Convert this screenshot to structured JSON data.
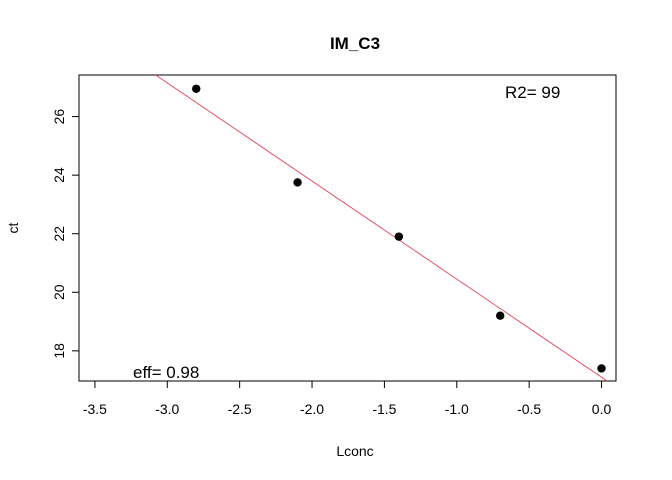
{
  "chart_data": {
    "type": "scatter",
    "title": "IM_C3",
    "xlabel": "Lconc",
    "ylabel": "ct",
    "xlim": [
      -3.61,
      0.1
    ],
    "ylim": [
      16.97,
      27.42
    ],
    "x_ticks": [
      -3.5,
      -3.0,
      -2.5,
      -2.0,
      -1.5,
      -1.0,
      -0.5,
      0.0
    ],
    "x_tick_labels": [
      "-3.5",
      "-3.0",
      "-2.5",
      "-2.0",
      "-1.5",
      "-1.0",
      "-0.5",
      "0.0"
    ],
    "y_ticks": [
      18,
      20,
      22,
      24,
      26
    ],
    "y_tick_labels": [
      "18",
      "20",
      "22",
      "24",
      "26"
    ],
    "grid": false,
    "points": [
      {
        "x": -2.8,
        "y": 26.95
      },
      {
        "x": -2.1,
        "y": 23.75
      },
      {
        "x": -1.4,
        "y": 21.9
      },
      {
        "x": -0.7,
        "y": 19.2
      },
      {
        "x": 0.0,
        "y": 17.4
      }
    ],
    "regression_line": {
      "slope": -3.35,
      "intercept": 17.1,
      "color": "#e8425a"
    },
    "point_color": "#000000",
    "annotations": {
      "r2": "R2= 99",
      "eff": "eff= 0.98"
    }
  }
}
